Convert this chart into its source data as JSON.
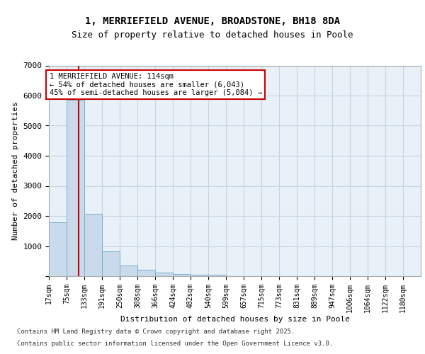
{
  "title1": "1, MERRIEFIELD AVENUE, BROADSTONE, BH18 8DA",
  "title2": "Size of property relative to detached houses in Poole",
  "xlabel": "Distribution of detached houses by size in Poole",
  "ylabel": "Number of detached properties",
  "categories": [
    "17sqm",
    "75sqm",
    "133sqm",
    "191sqm",
    "250sqm",
    "308sqm",
    "366sqm",
    "424sqm",
    "482sqm",
    "540sqm",
    "599sqm",
    "657sqm",
    "715sqm",
    "773sqm",
    "831sqm",
    "889sqm",
    "947sqm",
    "1006sqm",
    "1064sqm",
    "1122sqm",
    "1180sqm"
  ],
  "bar_values": [
    1800,
    5850,
    2080,
    820,
    360,
    220,
    110,
    80,
    55,
    40,
    0,
    0,
    0,
    0,
    0,
    0,
    0,
    0,
    0,
    0,
    0
  ],
  "bar_color": "#c9daea",
  "bar_edge_color": "#7ab0d0",
  "grid_color": "#c8d4e0",
  "background_color": "#e8f0f8",
  "annotation_text": "1 MERRIEFIELD AVENUE: 114sqm\n← 54% of detached houses are smaller (6,043)\n45% of semi-detached houses are larger (5,084) →",
  "annotation_box_color": "#ffffff",
  "annotation_box_edge": "#cc0000",
  "property_bar_index": 1,
  "property_line_color": "#cc0000",
  "ylim": [
    0,
    7000
  ],
  "yticks": [
    0,
    1000,
    2000,
    3000,
    4000,
    5000,
    6000,
    7000
  ],
  "footnote1": "Contains HM Land Registry data © Crown copyright and database right 2025.",
  "footnote2": "Contains public sector information licensed under the Open Government Licence v3.0."
}
